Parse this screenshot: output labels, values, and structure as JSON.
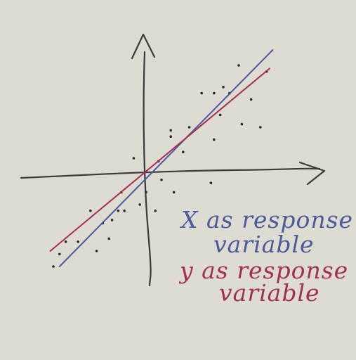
{
  "chart_data": {
    "type": "scatter",
    "title": "",
    "xlabel": "",
    "ylabel": "",
    "xlim": [
      -4.2,
      5.2
    ],
    "ylim": [
      -3.1,
      4.0
    ],
    "grid": false,
    "points": [
      {
        "x": 3.0,
        "y": 3.5
      },
      {
        "x": 3.9,
        "y": 3.3
      },
      {
        "x": 1.8,
        "y": 2.6
      },
      {
        "x": 2.2,
        "y": 2.6
      },
      {
        "x": 2.5,
        "y": 2.8
      },
      {
        "x": 2.7,
        "y": 2.6
      },
      {
        "x": 3.4,
        "y": 2.4
      },
      {
        "x": 2.4,
        "y": 1.9
      },
      {
        "x": 3.1,
        "y": 1.6
      },
      {
        "x": 3.7,
        "y": 1.5
      },
      {
        "x": 0.8,
        "y": 1.4
      },
      {
        "x": 1.4,
        "y": 1.5
      },
      {
        "x": 0.8,
        "y": 1.2
      },
      {
        "x": 2.2,
        "y": 1.1
      },
      {
        "x": 1.2,
        "y": 0.7
      },
      {
        "x": 0.4,
        "y": 0.4
      },
      {
        "x": -0.4,
        "y": 0.5
      },
      {
        "x": 0.5,
        "y": -0.2
      },
      {
        "x": 2.1,
        "y": -0.3
      },
      {
        "x": 0.9,
        "y": -0.6
      },
      {
        "x": 0.0,
        "y": -0.6
      },
      {
        "x": -0.8,
        "y": -0.6
      },
      {
        "x": -0.2,
        "y": -1.0
      },
      {
        "x": -0.7,
        "y": -1.2
      },
      {
        "x": -0.9,
        "y": -1.2
      },
      {
        "x": 0.3,
        "y": -1.2
      },
      {
        "x": -1.1,
        "y": -1.5
      },
      {
        "x": -1.4,
        "y": -1.6
      },
      {
        "x": -1.8,
        "y": -1.2
      },
      {
        "x": -1.2,
        "y": -2.1
      },
      {
        "x": -1.6,
        "y": -2.5
      },
      {
        "x": -2.2,
        "y": -2.2
      },
      {
        "x": -2.6,
        "y": -2.2
      },
      {
        "x": -2.8,
        "y": -2.6
      },
      {
        "x": -3.0,
        "y": -3.0
      }
    ],
    "lines": [
      {
        "name": "X as response variable",
        "color": "#4a5a9a",
        "x": [
          -2.8,
          4.1
        ],
        "y": [
          -3.0,
          4.0
        ]
      },
      {
        "name": "y as response variable",
        "color": "#a33050",
        "x": [
          -3.1,
          4.0
        ],
        "y": [
          -2.5,
          3.4
        ]
      }
    ],
    "annotations": [
      {
        "text": "X as response",
        "color": "#4a5a9a"
      },
      {
        "text": "variable",
        "color": "#4a5a9a"
      },
      {
        "text": "y as response",
        "color": "#a33050"
      },
      {
        "text": "variable",
        "color": "#a33050"
      }
    ]
  },
  "colors": {
    "background": "#dddbd2",
    "axes": "#3a3a3a",
    "points": "#2a2a2a"
  }
}
